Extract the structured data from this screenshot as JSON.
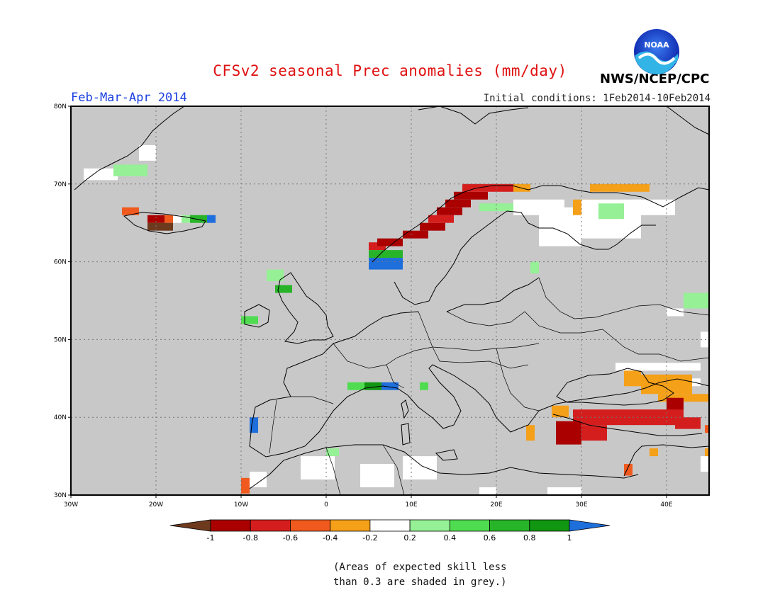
{
  "title": "CFSv2 seasonal Prec anomalies (mm/day)",
  "period": "Feb-Mar-Apr 2014",
  "initial_conditions": "Initial conditions: 1Feb2014-10Feb2014",
  "agency": "NWS/NCEP/CPC",
  "logo_text": "NOAA",
  "skill_note_line1": "(Areas of expected skill less",
  "skill_note_line2": "than 0.3 are shaded in grey.)",
  "map": {
    "lon_range": [
      -30,
      45
    ],
    "lat_range": [
      30,
      80
    ],
    "lon_ticks": [
      {
        "value": -30,
        "label": "30W"
      },
      {
        "value": -20,
        "label": "20W"
      },
      {
        "value": -10,
        "label": "10W"
      },
      {
        "value": 0,
        "label": "0"
      },
      {
        "value": 10,
        "label": "10E"
      },
      {
        "value": 20,
        "label": "20E"
      },
      {
        "value": 30,
        "label": "30E"
      },
      {
        "value": 40,
        "label": "40E"
      }
    ],
    "lat_ticks": [
      {
        "value": 30,
        "label": "30N"
      },
      {
        "value": 40,
        "label": "40N"
      },
      {
        "value": 50,
        "label": "50N"
      },
      {
        "value": 60,
        "label": "60N"
      },
      {
        "value": 70,
        "label": "70N"
      },
      {
        "value": 80,
        "label": "80N"
      }
    ],
    "grid": true,
    "background_color": "#c8c8c8"
  },
  "colorbar": {
    "labels": [
      "-1",
      "-0.8",
      "-0.6",
      "-0.4",
      "-0.2",
      "0.2",
      "0.4",
      "0.6",
      "0.8",
      "1"
    ],
    "colors": [
      "#6e3a1e",
      "#aa0000",
      "#d41e1e",
      "#f05a1e",
      "#f5a019",
      "#ffffff",
      "#96f096",
      "#50dc50",
      "#28b428",
      "#119611",
      "#1e6edc"
    ]
  },
  "anomaly_patches": [
    {
      "lon": -28.5,
      "lat": 70.5,
      "w": 4,
      "h": 1.5,
      "level": 0
    },
    {
      "lon": -25,
      "lat": 71,
      "w": 4,
      "h": 1.5,
      "level": 0.3
    },
    {
      "lon": -22,
      "lat": 73,
      "w": 2,
      "h": 2,
      "level": 0
    },
    {
      "lon": -24,
      "lat": 66,
      "w": 2,
      "h": 1,
      "level": -0.5
    },
    {
      "lon": -21,
      "lat": 65,
      "w": 2,
      "h": 1,
      "level": -0.9
    },
    {
      "lon": -19,
      "lat": 65,
      "w": 1,
      "h": 1,
      "level": -0.5
    },
    {
      "lon": -18,
      "lat": 65,
      "w": 1,
      "h": 1,
      "level": 0
    },
    {
      "lon": -17,
      "lat": 65,
      "w": 1,
      "h": 1,
      "level": 0.3
    },
    {
      "lon": -16,
      "lat": 65,
      "w": 2,
      "h": 1,
      "level": 0.7
    },
    {
      "lon": -14,
      "lat": 65,
      "w": 1,
      "h": 1,
      "level": 1
    },
    {
      "lon": -21,
      "lat": 64,
      "w": 3,
      "h": 1,
      "level": -1
    },
    {
      "lon": -7,
      "lat": 57.5,
      "w": 2,
      "h": 1.5,
      "level": 0.3
    },
    {
      "lon": -6,
      "lat": 56,
      "w": 2,
      "h": 1,
      "level": 0.7
    },
    {
      "lon": -10,
      "lat": 52,
      "w": 2,
      "h": 1,
      "level": 0.5
    },
    {
      "lon": -9,
      "lat": 38,
      "w": 1,
      "h": 2,
      "level": 1
    },
    {
      "lon": -10,
      "lat": 30.2,
      "w": 1,
      "h": 2,
      "level": -0.5
    },
    {
      "lon": -9,
      "lat": 31,
      "w": 2,
      "h": 2,
      "level": 0
    },
    {
      "lon": 2.5,
      "lat": 43.5,
      "w": 2,
      "h": 1,
      "level": 0.5
    },
    {
      "lon": 4.5,
      "lat": 43.5,
      "w": 2,
      "h": 1,
      "level": 0.8
    },
    {
      "lon": 6.5,
      "lat": 43.5,
      "w": 2,
      "h": 1,
      "level": 1
    },
    {
      "lon": 11,
      "lat": 43.5,
      "w": 1,
      "h": 1,
      "level": 0.5
    },
    {
      "lon": 0,
      "lat": 35,
      "w": 1.5,
      "h": 1,
      "level": 0.3
    },
    {
      "lon": -3,
      "lat": 32,
      "w": 4,
      "h": 3,
      "level": 0
    },
    {
      "lon": 4,
      "lat": 31,
      "w": 4,
      "h": 3,
      "level": 0
    },
    {
      "lon": 9,
      "lat": 32,
      "w": 4,
      "h": 3,
      "level": 0
    },
    {
      "lon": 5,
      "lat": 61.5,
      "w": 2,
      "h": 1,
      "level": -0.7
    },
    {
      "lon": 5,
      "lat": 60.5,
      "w": 4,
      "h": 1,
      "level": 0.6
    },
    {
      "lon": 5,
      "lat": 59,
      "w": 4,
      "h": 1.5,
      "level": 1
    },
    {
      "lon": 6,
      "lat": 62,
      "w": 3,
      "h": 1,
      "level": -0.9
    },
    {
      "lon": 9,
      "lat": 63,
      "w": 3,
      "h": 1,
      "level": -0.9
    },
    {
      "lon": 11,
      "lat": 64,
      "w": 3,
      "h": 1,
      "level": -0.9
    },
    {
      "lon": 12,
      "lat": 65,
      "w": 3,
      "h": 1,
      "level": -0.7
    },
    {
      "lon": 13,
      "lat": 66,
      "w": 3,
      "h": 1,
      "level": -0.9
    },
    {
      "lon": 14,
      "lat": 67,
      "w": 3,
      "h": 1,
      "level": -0.9
    },
    {
      "lon": 15,
      "lat": 68,
      "w": 4,
      "h": 1,
      "level": -0.9
    },
    {
      "lon": 16,
      "lat": 69,
      "w": 6,
      "h": 1,
      "level": -0.7
    },
    {
      "lon": 22,
      "lat": 69,
      "w": 2,
      "h": 1,
      "level": -0.4
    },
    {
      "lon": 18,
      "lat": 66.5,
      "w": 4,
      "h": 1,
      "level": 0.3
    },
    {
      "lon": 22,
      "lat": 66,
      "w": 6,
      "h": 2,
      "level": 0
    },
    {
      "lon": 25,
      "lat": 62,
      "w": 5,
      "h": 5,
      "level": 0
    },
    {
      "lon": 29,
      "lat": 66,
      "w": 3,
      "h": 2,
      "level": -0.4
    },
    {
      "lon": 31,
      "lat": 69,
      "w": 7,
      "h": 1,
      "level": -0.4
    },
    {
      "lon": 30,
      "lat": 63,
      "w": 7,
      "h": 5,
      "level": 0
    },
    {
      "lon": 32,
      "lat": 65.5,
      "w": 3,
      "h": 2,
      "level": 0.3
    },
    {
      "lon": 36,
      "lat": 66,
      "w": 5,
      "h": 2,
      "level": 0
    },
    {
      "lon": 24,
      "lat": 58.5,
      "w": 1,
      "h": 1.5,
      "level": 0.3
    },
    {
      "lon": 42,
      "lat": 54,
      "w": 3,
      "h": 2,
      "level": 0.3
    },
    {
      "lon": 40,
      "lat": 53,
      "w": 2,
      "h": 1,
      "level": 0
    },
    {
      "lon": 44,
      "lat": 49,
      "w": 1,
      "h": 2,
      "level": 0
    },
    {
      "lon": 34,
      "lat": 46,
      "w": 10,
      "h": 1,
      "level": 0
    },
    {
      "lon": 37,
      "lat": 43,
      "w": 6,
      "h": 2.5,
      "level": -0.4
    },
    {
      "lon": 35,
      "lat": 44,
      "w": 2,
      "h": 2,
      "level": -0.4
    },
    {
      "lon": 43,
      "lat": 44,
      "w": 1,
      "h": 1,
      "level": 0
    },
    {
      "lon": 39,
      "lat": 42,
      "w": 6,
      "h": 1,
      "level": -0.4
    },
    {
      "lon": 40,
      "lat": 40.5,
      "w": 2,
      "h": 2,
      "level": -0.9
    },
    {
      "lon": 29,
      "lat": 39,
      "w": 13,
      "h": 2,
      "level": -0.7
    },
    {
      "lon": 26.5,
      "lat": 40,
      "w": 2,
      "h": 1.5,
      "level": -0.4
    },
    {
      "lon": 27,
      "lat": 36.5,
      "w": 3,
      "h": 3,
      "level": -0.9
    },
    {
      "lon": 30,
      "lat": 37,
      "w": 3,
      "h": 2,
      "level": -0.7
    },
    {
      "lon": 41,
      "lat": 38.5,
      "w": 3,
      "h": 1.5,
      "level": -0.7
    },
    {
      "lon": 23.5,
      "lat": 37,
      "w": 1,
      "h": 2,
      "level": -0.4
    },
    {
      "lon": 38,
      "lat": 35,
      "w": 1,
      "h": 1,
      "level": -0.4
    },
    {
      "lon": 35,
      "lat": 32.5,
      "w": 1,
      "h": 1.5,
      "level": -0.5
    },
    {
      "lon": 44,
      "lat": 33,
      "w": 1,
      "h": 2,
      "level": 0
    },
    {
      "lon": 44.5,
      "lat": 35,
      "w": 0.5,
      "h": 1,
      "level": -0.4
    },
    {
      "lon": 44.5,
      "lat": 38,
      "w": 0.5,
      "h": 1,
      "level": -0.6
    },
    {
      "lon": 26,
      "lat": 30,
      "w": 4,
      "h": 1,
      "level": 0
    },
    {
      "lon": 18,
      "lat": 30,
      "w": 2,
      "h": 1,
      "level": 0
    }
  ]
}
